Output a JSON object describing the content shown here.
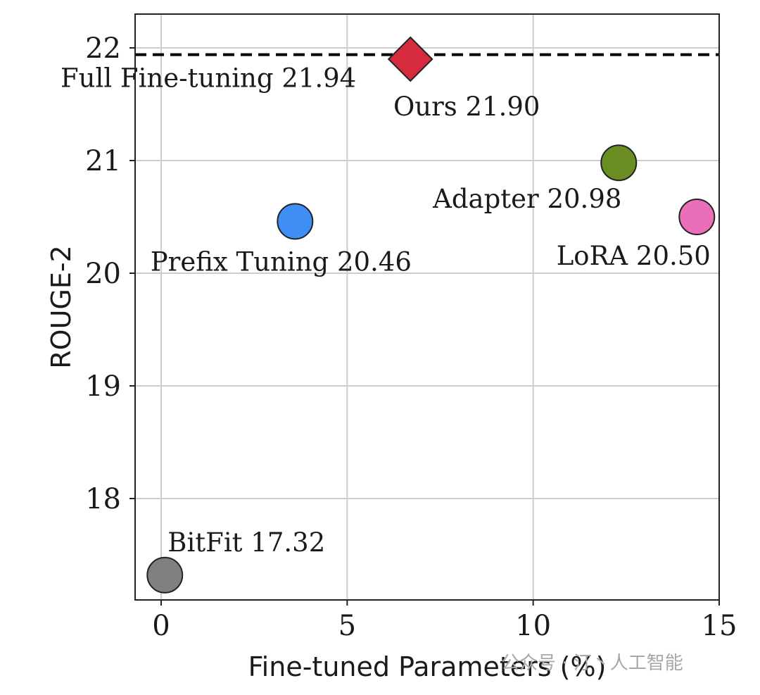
{
  "chart_data": {
    "type": "scatter",
    "xlabel": "Fine-tuned Parameters (%)",
    "ylabel": "ROUGE-2",
    "xlim": [
      -0.7,
      15
    ],
    "ylim": [
      17.1,
      22.3
    ],
    "xticks": [
      0,
      5,
      10,
      15
    ],
    "yticks": [
      18,
      19,
      20,
      21,
      22
    ],
    "xtick_labels": [
      "0",
      "5",
      "10",
      "15"
    ],
    "ytick_labels": [
      "18",
      "19",
      "20",
      "21",
      "22"
    ],
    "grid": true,
    "points": [
      {
        "label": "BitFit 17.32",
        "x": 0.1,
        "y": 17.32,
        "color": "#808080",
        "marker": "circle"
      },
      {
        "label": "Prefix Tuning 20.46",
        "x": 3.6,
        "y": 20.46,
        "color": "#3f8ef5",
        "marker": "circle"
      },
      {
        "label": "Ours 21.90",
        "x": 6.7,
        "y": 21.9,
        "color": "#d62a3e",
        "marker": "diamond"
      },
      {
        "label": "Adapter 20.98",
        "x": 12.3,
        "y": 20.98,
        "color": "#6b8e23",
        "marker": "circle"
      },
      {
        "label": "LoRA 20.50",
        "x": 14.4,
        "y": 20.5,
        "color": "#e86fb8",
        "marker": "circle"
      }
    ],
    "reference_line": {
      "label": "Full Fine-tuning 21.94",
      "y": 21.94,
      "style": "dashed",
      "color": "#000000"
    }
  },
  "watermark": {
    "text": "公众号 · 汀丶人工智能"
  }
}
